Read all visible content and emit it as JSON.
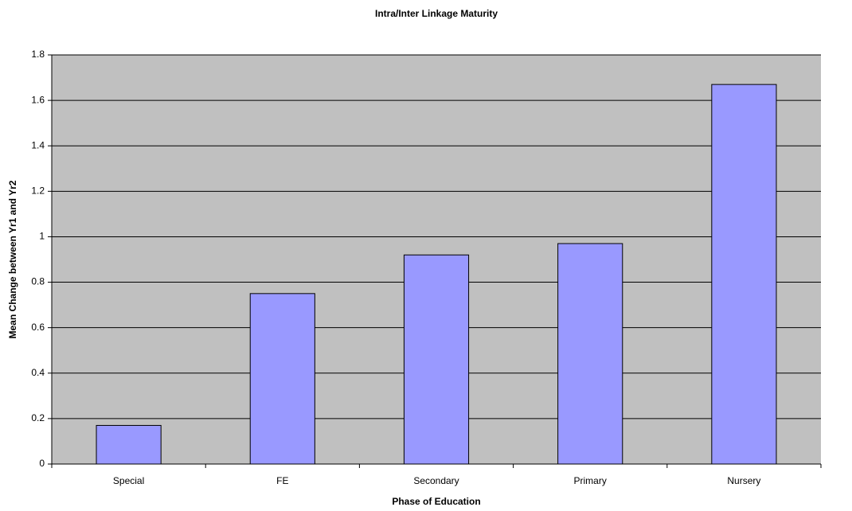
{
  "chart_data": {
    "type": "bar",
    "title": "Intra/Inter Linkage Maturity",
    "x_label": "Phase of Education",
    "y_label": "Mean Change between Yr1 and Yr2",
    "categories": [
      "Special",
      "FE",
      "Secondary",
      "Primary",
      "Nursery"
    ],
    "values": [
      0.17,
      0.75,
      0.92,
      0.97,
      1.67
    ],
    "color": "#9999ff",
    "ylim": [
      0,
      1.8
    ],
    "yticks": [
      0,
      0.2,
      0.4,
      0.6,
      0.8,
      1,
      1.2,
      1.4,
      1.6,
      1.8
    ],
    "grid": true
  }
}
